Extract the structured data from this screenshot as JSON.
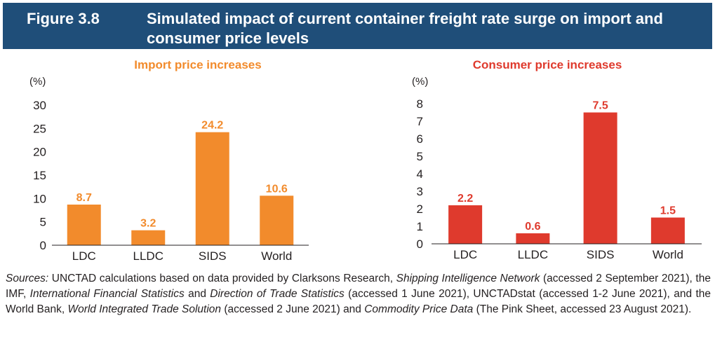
{
  "header": {
    "figure_number": "Figure 3.8",
    "title": "Simulated impact of current container freight rate surge on import and consumer price levels"
  },
  "chart_data": [
    {
      "type": "bar",
      "title": "Import price increases",
      "ylabel": "(%)",
      "categories": [
        "LDC",
        "LLDC",
        "SIDS",
        "World"
      ],
      "values": [
        8.7,
        3.2,
        24.2,
        10.6
      ],
      "data_labels": [
        "8.7",
        "3.2",
        "24.2",
        "10.6"
      ],
      "yticks": [
        "0",
        "5",
        "10",
        "15",
        "20",
        "25",
        "30"
      ],
      "ylim": [
        0,
        30
      ],
      "grid": false,
      "color": "#f28b2c"
    },
    {
      "type": "bar",
      "title": "Consumer price increases",
      "ylabel": "(%)",
      "categories": [
        "LDC",
        "LLDC",
        "SIDS",
        "World"
      ],
      "values": [
        2.2,
        0.6,
        7.5,
        1.5
      ],
      "data_labels": [
        "2.2",
        "0.6",
        "7.5",
        "1.5"
      ],
      "yticks": [
        "0",
        "1",
        "2",
        "3",
        "4",
        "5",
        "6",
        "7",
        "8"
      ],
      "ylim": [
        0,
        8
      ],
      "grid": false,
      "color": "#df3a2d"
    }
  ],
  "sources": {
    "s1": "Sources:",
    "s2": " UNCTAD calculations based on data provided by Clarksons Research, ",
    "s3": "Shipping Intelligence Network",
    "s4": " (accessed 2 September 2021), the IMF, ",
    "s5": "International Financial Statistics",
    "s6": " and ",
    "s7": "Direction of Trade Statistics",
    "s8": " (accessed 1 June 2021), UNCTADstat (accessed 1-2 June 2021), and the World Bank, ",
    "s9": "World Integrated Trade Solution",
    "s10": " (accessed 2 June 2021) and ",
    "s11": "Commodity Price Data",
    "s12": " (The Pink Sheet, accessed 23 August 2021)."
  }
}
